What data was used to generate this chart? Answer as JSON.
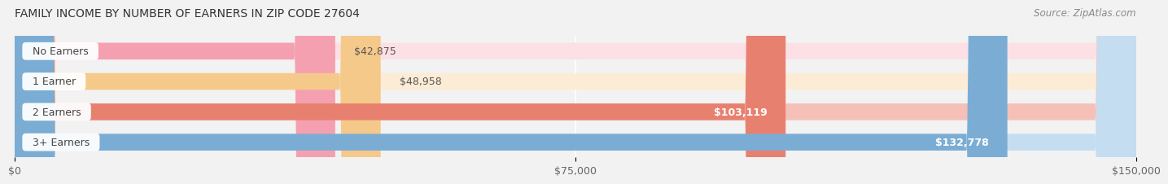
{
  "title": "FAMILY INCOME BY NUMBER OF EARNERS IN ZIP CODE 27604",
  "source": "Source: ZipAtlas.com",
  "categories": [
    "No Earners",
    "1 Earner",
    "2 Earners",
    "3+ Earners"
  ],
  "values": [
    42875,
    48958,
    103119,
    132778
  ],
  "value_labels": [
    "$42,875",
    "$48,958",
    "$103,119",
    "$132,778"
  ],
  "bar_colors": [
    "#f4a0b0",
    "#f5c98a",
    "#e88070",
    "#7badd4"
  ],
  "bar_bg_colors": [
    "#fce0e6",
    "#fdecd5",
    "#f5c0b8",
    "#c5ddf0"
  ],
  "x_max": 150000,
  "x_ticks": [
    0,
    75000,
    150000
  ],
  "x_tick_labels": [
    "$0",
    "$75,000",
    "$150,000"
  ],
  "background_color": "#f2f2f2",
  "title_fontsize": 10,
  "source_fontsize": 8.5
}
